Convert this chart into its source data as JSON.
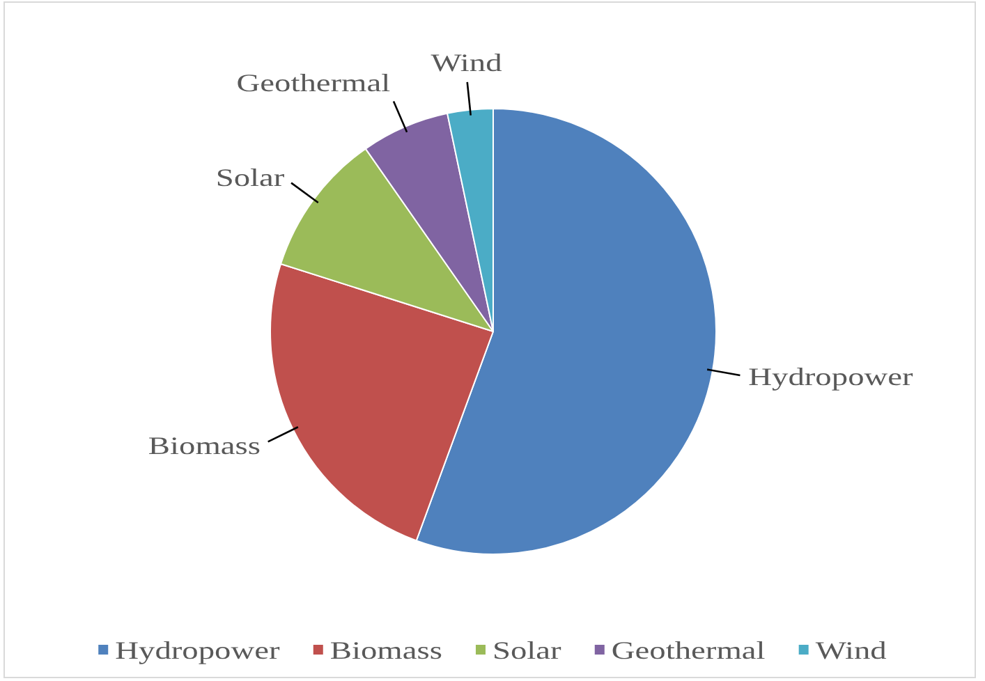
{
  "chart_data": {
    "type": "pie",
    "categories": [
      "Hydropower",
      "Biomass",
      "Solar",
      "Geothermal",
      "Wind"
    ],
    "values": [
      55.6,
      24.3,
      10.4,
      6.4,
      3.3
    ],
    "colors": [
      "#4f81bd",
      "#c0504d",
      "#9bbb59",
      "#8064a2",
      "#4bacc6"
    ],
    "legend": "bottom"
  }
}
